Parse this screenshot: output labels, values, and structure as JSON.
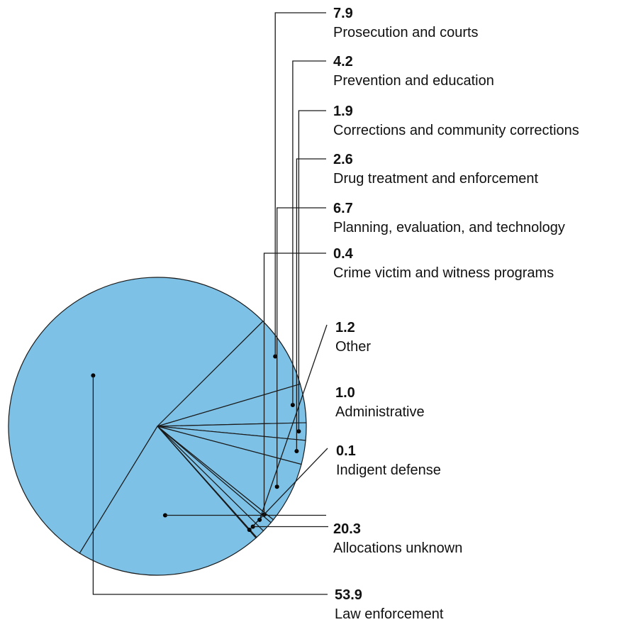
{
  "chart_data": {
    "type": "pie",
    "slices": [
      {
        "label": "Law enforcement",
        "value": 53.9,
        "value_text": "53.9"
      },
      {
        "label": "Prosecution and courts",
        "value": 7.9,
        "value_text": "7.9"
      },
      {
        "label": "Prevention and education",
        "value": 4.2,
        "value_text": "4.2"
      },
      {
        "label": "Corrections and community corrections",
        "value": 1.9,
        "value_text": "1.9"
      },
      {
        "label": "Drug treatment and enforcement",
        "value": 2.6,
        "value_text": "2.6"
      },
      {
        "label": "Planning, evaluation, and technology",
        "value": 6.7,
        "value_text": "6.7"
      },
      {
        "label": "Crime victim and witness programs",
        "value": 0.4,
        "value_text": "0.4"
      },
      {
        "label": "Other",
        "value": 1.2,
        "value_text": "1.2"
      },
      {
        "label": "Administrative",
        "value": 1.0,
        "value_text": "1.0"
      },
      {
        "label": "Indigent defense",
        "value": 0.1,
        "value_text": "0.1"
      },
      {
        "label": "Allocations unknown",
        "value": 20.3,
        "value_text": "20.3"
      }
    ],
    "colors": {
      "fill": "#7dc1e6",
      "stroke": "#1a1a1a"
    },
    "legend": "none"
  }
}
